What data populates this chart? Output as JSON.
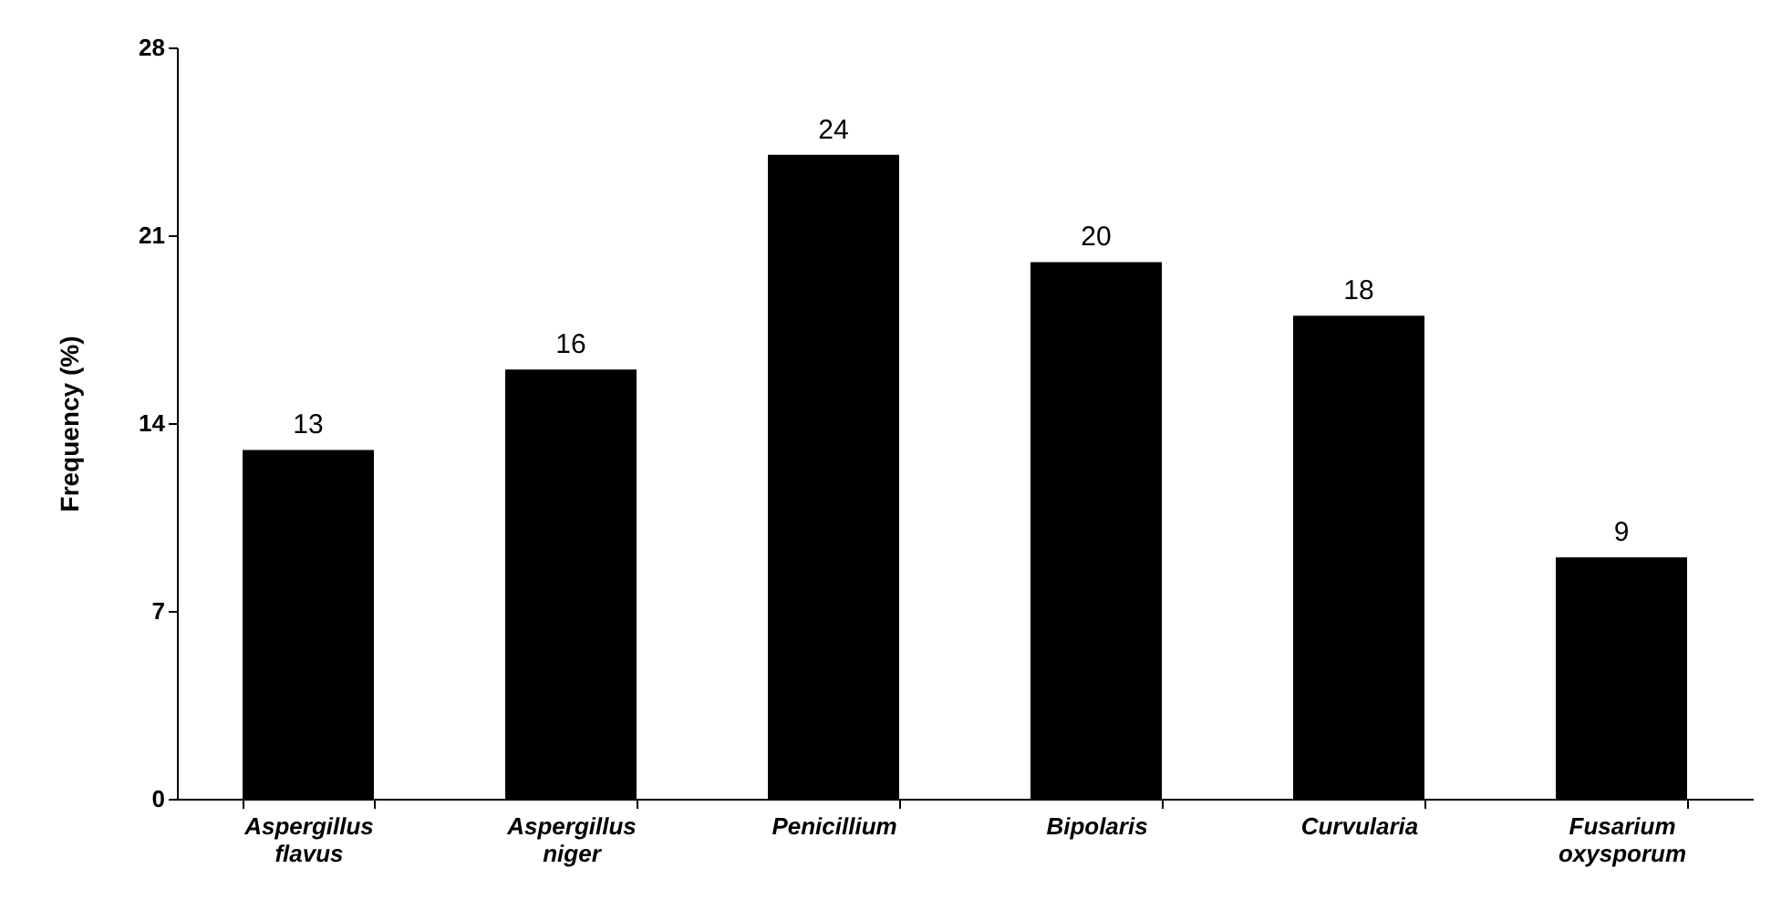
{
  "chart_data": {
    "type": "bar",
    "ylabel": "Frequency (%)",
    "categories": [
      "Aspergillus flavus",
      "Aspergillus niger",
      "Penicillium",
      "Bipolaris",
      "Curvularia",
      "Fusarium oxysporum"
    ],
    "values": [
      13,
      16,
      24,
      20,
      18,
      9
    ],
    "color": "#000000",
    "ylim": [
      0,
      28
    ],
    "yticks": [
      0,
      7,
      14,
      21,
      28
    ],
    "grid": false,
    "data_labels": true
  }
}
